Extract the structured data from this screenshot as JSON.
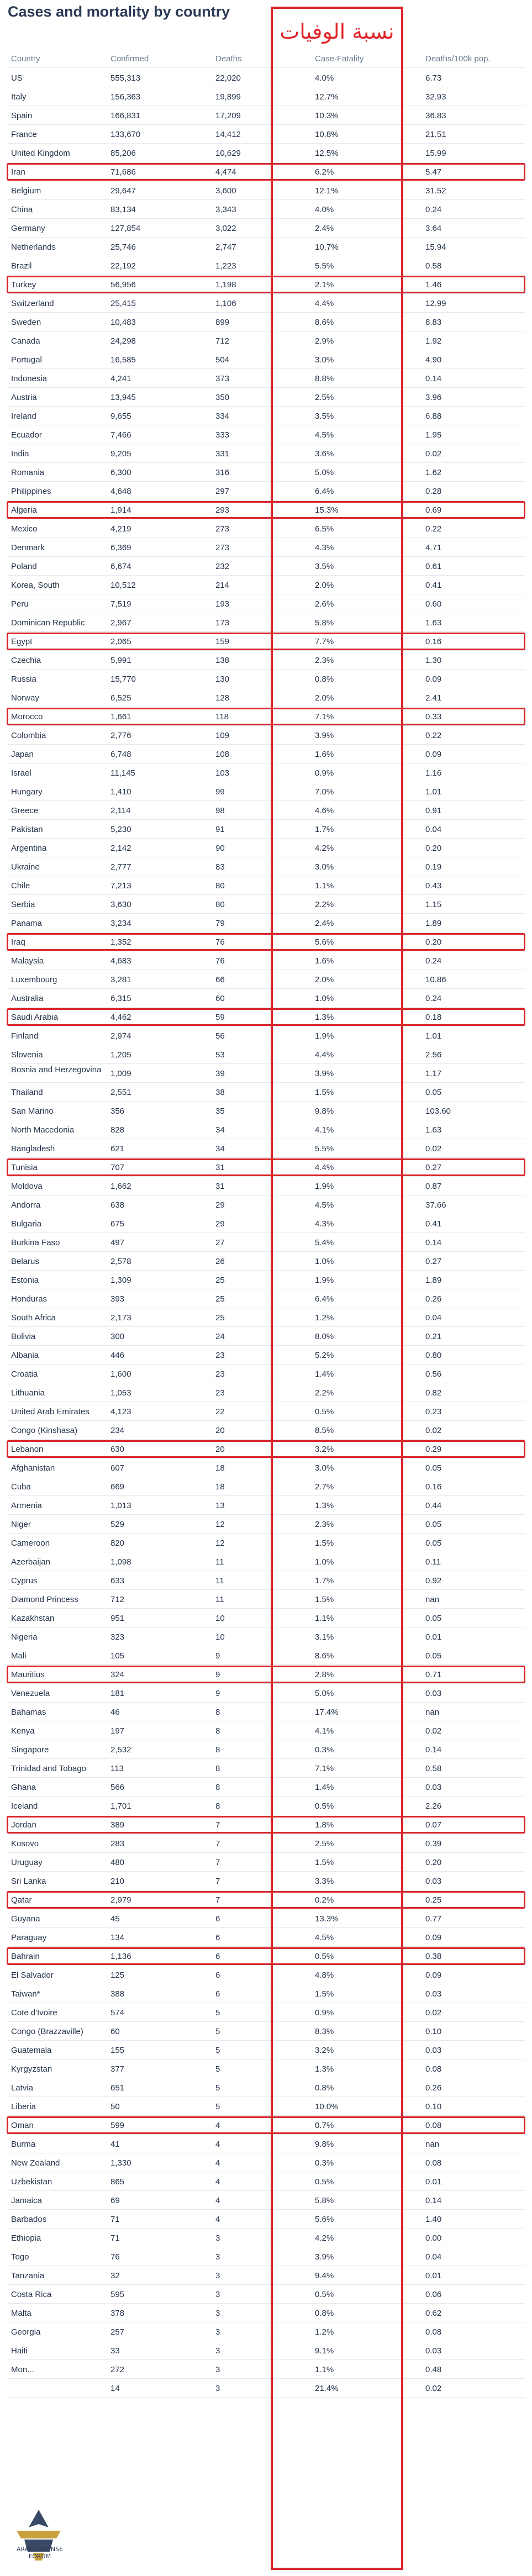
{
  "title": "Cases and mortality by country",
  "stamp_text": "نسبة الوفيات",
  "watermark_text": "ARAB DEFENSE FORUM",
  "colors": {
    "highlight": "#d9262c",
    "title": "#2b3a55",
    "header": "#6b7b91"
  },
  "columns": [
    "Country",
    "Confirmed",
    "Deaths",
    "Case-Fatality",
    "Deaths/100k pop."
  ],
  "rows": [
    [
      "US",
      "555,313",
      "22,020",
      "4.0%",
      "6.73"
    ],
    [
      "Italy",
      "156,363",
      "19,899",
      "12.7%",
      "32.93"
    ],
    [
      "Spain",
      "166,831",
      "17,209",
      "10.3%",
      "36.83"
    ],
    [
      "France",
      "133,670",
      "14,412",
      "10.8%",
      "21.51"
    ],
    [
      "United Kingdom",
      "85,206",
      "10,629",
      "12.5%",
      "15.99"
    ],
    [
      "Iran",
      "71,686",
      "4,474",
      "6.2%",
      "5.47"
    ],
    [
      "Belgium",
      "29,647",
      "3,600",
      "12.1%",
      "31.52"
    ],
    [
      "China",
      "83,134",
      "3,343",
      "4.0%",
      "0.24"
    ],
    [
      "Germany",
      "127,854",
      "3,022",
      "2.4%",
      "3.64"
    ],
    [
      "Netherlands",
      "25,746",
      "2,747",
      "10.7%",
      "15.94"
    ],
    [
      "Brazil",
      "22,192",
      "1,223",
      "5.5%",
      "0.58"
    ],
    [
      "Turkey",
      "56,956",
      "1,198",
      "2.1%",
      "1.46"
    ],
    [
      "Switzerland",
      "25,415",
      "1,106",
      "4.4%",
      "12.99"
    ],
    [
      "Sweden",
      "10,483",
      "899",
      "8.6%",
      "8.83"
    ],
    [
      "Canada",
      "24,298",
      "712",
      "2.9%",
      "1.92"
    ],
    [
      "Portugal",
      "16,585",
      "504",
      "3.0%",
      "4.90"
    ],
    [
      "Indonesia",
      "4,241",
      "373",
      "8.8%",
      "0.14"
    ],
    [
      "Austria",
      "13,945",
      "350",
      "2.5%",
      "3.96"
    ],
    [
      "Ireland",
      "9,655",
      "334",
      "3.5%",
      "6.88"
    ],
    [
      "Ecuador",
      "7,466",
      "333",
      "4.5%",
      "1.95"
    ],
    [
      "India",
      "9,205",
      "331",
      "3.6%",
      "0.02"
    ],
    [
      "Romania",
      "6,300",
      "316",
      "5.0%",
      "1.62"
    ],
    [
      "Philippines",
      "4,648",
      "297",
      "6.4%",
      "0.28"
    ],
    [
      "Algeria",
      "1,914",
      "293",
      "15.3%",
      "0.69"
    ],
    [
      "Mexico",
      "4,219",
      "273",
      "6.5%",
      "0.22"
    ],
    [
      "Denmark",
      "6,369",
      "273",
      "4.3%",
      "4.71"
    ],
    [
      "Poland",
      "6,674",
      "232",
      "3.5%",
      "0.61"
    ],
    [
      "Korea, South",
      "10,512",
      "214",
      "2.0%",
      "0.41"
    ],
    [
      "Peru",
      "7,519",
      "193",
      "2.6%",
      "0.60"
    ],
    [
      "Dominican Republic",
      "2,967",
      "173",
      "5.8%",
      "1.63"
    ],
    [
      "Egypt",
      "2,065",
      "159",
      "7.7%",
      "0.16"
    ],
    [
      "Czechia",
      "5,991",
      "138",
      "2.3%",
      "1.30"
    ],
    [
      "Russia",
      "15,770",
      "130",
      "0.8%",
      "0.09"
    ],
    [
      "Norway",
      "6,525",
      "128",
      "2.0%",
      "2.41"
    ],
    [
      "Morocco",
      "1,661",
      "118",
      "7.1%",
      "0.33"
    ],
    [
      "Colombia",
      "2,776",
      "109",
      "3.9%",
      "0.22"
    ],
    [
      "Japan",
      "6,748",
      "108",
      "1.6%",
      "0.09"
    ],
    [
      "Israel",
      "11,145",
      "103",
      "0.9%",
      "1.16"
    ],
    [
      "Hungary",
      "1,410",
      "99",
      "7.0%",
      "1.01"
    ],
    [
      "Greece",
      "2,114",
      "98",
      "4.6%",
      "0.91"
    ],
    [
      "Pakistan",
      "5,230",
      "91",
      "1.7%",
      "0.04"
    ],
    [
      "Argentina",
      "2,142",
      "90",
      "4.2%",
      "0.20"
    ],
    [
      "Ukraine",
      "2,777",
      "83",
      "3.0%",
      "0.19"
    ],
    [
      "Chile",
      "7,213",
      "80",
      "1.1%",
      "0.43"
    ],
    [
      "Serbia",
      "3,630",
      "80",
      "2.2%",
      "1.15"
    ],
    [
      "Panama",
      "3,234",
      "79",
      "2.4%",
      "1.89"
    ],
    [
      "Iraq",
      "1,352",
      "76",
      "5.6%",
      "0.20"
    ],
    [
      "Malaysia",
      "4,683",
      "76",
      "1.6%",
      "0.24"
    ],
    [
      "Luxembourg",
      "3,281",
      "66",
      "2.0%",
      "10.86"
    ],
    [
      "Australia",
      "6,315",
      "60",
      "1.0%",
      "0.24"
    ],
    [
      "Saudi Arabia",
      "4,462",
      "59",
      "1.3%",
      "0.18"
    ],
    [
      "Finland",
      "2,974",
      "56",
      "1.9%",
      "1.01"
    ],
    [
      "Slovenia",
      "1,205",
      "53",
      "4.4%",
      "2.56"
    ],
    [
      "Bosnia and Herzegovina",
      "1,009",
      "39",
      "3.9%",
      "1.17"
    ],
    [
      "Thailand",
      "2,551",
      "38",
      "1.5%",
      "0.05"
    ],
    [
      "San Marino",
      "356",
      "35",
      "9.8%",
      "103.60"
    ],
    [
      "North Macedonia",
      "828",
      "34",
      "4.1%",
      "1.63"
    ],
    [
      "Bangladesh",
      "621",
      "34",
      "5.5%",
      "0.02"
    ],
    [
      "Tunisia",
      "707",
      "31",
      "4.4%",
      "0.27"
    ],
    [
      "Moldova",
      "1,662",
      "31",
      "1.9%",
      "0.87"
    ],
    [
      "Andorra",
      "638",
      "29",
      "4.5%",
      "37.66"
    ],
    [
      "Bulgaria",
      "675",
      "29",
      "4.3%",
      "0.41"
    ],
    [
      "Burkina Faso",
      "497",
      "27",
      "5.4%",
      "0.14"
    ],
    [
      "Belarus",
      "2,578",
      "26",
      "1.0%",
      "0.27"
    ],
    [
      "Estonia",
      "1,309",
      "25",
      "1.9%",
      "1.89"
    ],
    [
      "Honduras",
      "393",
      "25",
      "6.4%",
      "0.26"
    ],
    [
      "South Africa",
      "2,173",
      "25",
      "1.2%",
      "0.04"
    ],
    [
      "Bolivia",
      "300",
      "24",
      "8.0%",
      "0.21"
    ],
    [
      "Albania",
      "446",
      "23",
      "5.2%",
      "0.80"
    ],
    [
      "Croatia",
      "1,600",
      "23",
      "1.4%",
      "0.56"
    ],
    [
      "Lithuania",
      "1,053",
      "23",
      "2.2%",
      "0.82"
    ],
    [
      "United Arab Emirates",
      "4,123",
      "22",
      "0.5%",
      "0.23"
    ],
    [
      "Congo (Kinshasa)",
      "234",
      "20",
      "8.5%",
      "0.02"
    ],
    [
      "Lebanon",
      "630",
      "20",
      "3.2%",
      "0.29"
    ],
    [
      "Afghanistan",
      "607",
      "18",
      "3.0%",
      "0.05"
    ],
    [
      "Cuba",
      "669",
      "18",
      "2.7%",
      "0.16"
    ],
    [
      "Armenia",
      "1,013",
      "13",
      "1.3%",
      "0.44"
    ],
    [
      "Niger",
      "529",
      "12",
      "2.3%",
      "0.05"
    ],
    [
      "Cameroon",
      "820",
      "12",
      "1.5%",
      "0.05"
    ],
    [
      "Azerbaijan",
      "1,098",
      "11",
      "1.0%",
      "0.11"
    ],
    [
      "Cyprus",
      "633",
      "11",
      "1.7%",
      "0.92"
    ],
    [
      "Diamond Princess",
      "712",
      "11",
      "1.5%",
      "nan"
    ],
    [
      "Kazakhstan",
      "951",
      "10",
      "1.1%",
      "0.05"
    ],
    [
      "Nigeria",
      "323",
      "10",
      "3.1%",
      "0.01"
    ],
    [
      "Mali",
      "105",
      "9",
      "8.6%",
      "0.05"
    ],
    [
      "Mauritius",
      "324",
      "9",
      "2.8%",
      "0.71"
    ],
    [
      "Venezuela",
      "181",
      "9",
      "5.0%",
      "0.03"
    ],
    [
      "Bahamas",
      "46",
      "8",
      "17.4%",
      "nan"
    ],
    [
      "Kenya",
      "197",
      "8",
      "4.1%",
      "0.02"
    ],
    [
      "Singapore",
      "2,532",
      "8",
      "0.3%",
      "0.14"
    ],
    [
      "Trinidad and Tobago",
      "113",
      "8",
      "7.1%",
      "0.58"
    ],
    [
      "Ghana",
      "566",
      "8",
      "1.4%",
      "0.03"
    ],
    [
      "Iceland",
      "1,701",
      "8",
      "0.5%",
      "2.26"
    ],
    [
      "Jordan",
      "389",
      "7",
      "1.8%",
      "0.07"
    ],
    [
      "Kosovo",
      "283",
      "7",
      "2.5%",
      "0.39"
    ],
    [
      "Uruguay",
      "480",
      "7",
      "1.5%",
      "0.20"
    ],
    [
      "Sri Lanka",
      "210",
      "7",
      "3.3%",
      "0.03"
    ],
    [
      "Qatar",
      "2,979",
      "7",
      "0.2%",
      "0.25"
    ],
    [
      "Guyana",
      "45",
      "6",
      "13.3%",
      "0.77"
    ],
    [
      "Paraguay",
      "134",
      "6",
      "4.5%",
      "0.09"
    ],
    [
      "Bahrain",
      "1,136",
      "6",
      "0.5%",
      "0.38"
    ],
    [
      "El Salvador",
      "125",
      "6",
      "4.8%",
      "0.09"
    ],
    [
      "Taiwan*",
      "388",
      "6",
      "1.5%",
      "0.03"
    ],
    [
      "Cote d'Ivoire",
      "574",
      "5",
      "0.9%",
      "0.02"
    ],
    [
      "Congo (Brazzaville)",
      "60",
      "5",
      "8.3%",
      "0.10"
    ],
    [
      "Guatemala",
      "155",
      "5",
      "3.2%",
      "0.03"
    ],
    [
      "Kyrgyzstan",
      "377",
      "5",
      "1.3%",
      "0.08"
    ],
    [
      "Latvia",
      "651",
      "5",
      "0.8%",
      "0.26"
    ],
    [
      "Liberia",
      "50",
      "5",
      "10.0%",
      "0.10"
    ],
    [
      "Oman",
      "599",
      "4",
      "0.7%",
      "0.08"
    ],
    [
      "Burma",
      "41",
      "4",
      "9.8%",
      "nan"
    ],
    [
      "New Zealand",
      "1,330",
      "4",
      "0.3%",
      "0.08"
    ],
    [
      "Uzbekistan",
      "865",
      "4",
      "0.5%",
      "0.01"
    ],
    [
      "Jamaica",
      "69",
      "4",
      "5.8%",
      "0.14"
    ],
    [
      "Barbados",
      "71",
      "4",
      "5.6%",
      "1.40"
    ],
    [
      "Ethiopia",
      "71",
      "3",
      "4.2%",
      "0.00"
    ],
    [
      "Togo",
      "76",
      "3",
      "3.9%",
      "0.04"
    ],
    [
      "Tanzania",
      "32",
      "3",
      "9.4%",
      "0.01"
    ],
    [
      "Costa Rica",
      "595",
      "3",
      "0.5%",
      "0.06"
    ],
    [
      "Malta",
      "378",
      "3",
      "0.8%",
      "0.62"
    ],
    [
      "Georgia",
      "257",
      "3",
      "1.2%",
      "0.08"
    ],
    [
      "Haiti",
      "33",
      "3",
      "9.1%",
      "0.03"
    ],
    [
      "Mon...",
      "272",
      "3",
      "1.1%",
      "0.48"
    ],
    [
      "",
      "14",
      "3",
      "21.4%",
      "0.02"
    ]
  ],
  "highlighted": [
    "Iran",
    "Turkey",
    "Algeria",
    "Egypt",
    "Morocco",
    "Iraq",
    "Saudi Arabia",
    "Tunisia",
    "Lebanon",
    "Mauritius",
    "Jordan",
    "Qatar",
    "Bahrain",
    "Oman"
  ]
}
